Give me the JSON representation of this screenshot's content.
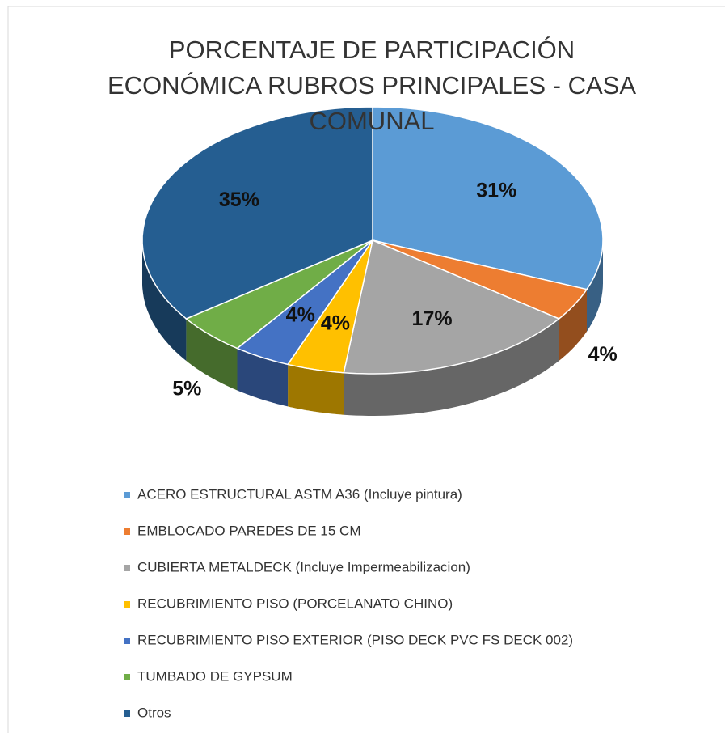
{
  "chart_data": {
    "type": "pie",
    "three_d": true,
    "title": "PORCENTAJE DE PARTICIPACIÓN ECONÓMICA RUBROS PRINCIPALES - CASA COMUNAL",
    "categories": [
      "ACERO ESTRUCTURAL ASTM A36 (Incluye pintura)",
      "EMBLOCADO PAREDES DE 15 CM",
      "CUBIERTA METALDECK (Incluye Impermeabilizacion)",
      "RECUBRIMIENTO PISO  (PORCELANATO CHINO)",
      "RECUBRIMIENTO PISO EXTERIOR (PISO DECK PVC FS DECK 002)",
      "TUMBADO DE GYPSUM",
      "Otros"
    ],
    "values": [
      31,
      4,
      17,
      4,
      4,
      5,
      35
    ],
    "value_labels": [
      "31%",
      "4%",
      "17%",
      "4%",
      "4%",
      "5%",
      "35%"
    ],
    "colors": [
      "#5b9bd5",
      "#ed7d31",
      "#a5a5a5",
      "#ffc000",
      "#4472c4",
      "#70ad47",
      "#255e91"
    ],
    "legend": "bottom"
  }
}
